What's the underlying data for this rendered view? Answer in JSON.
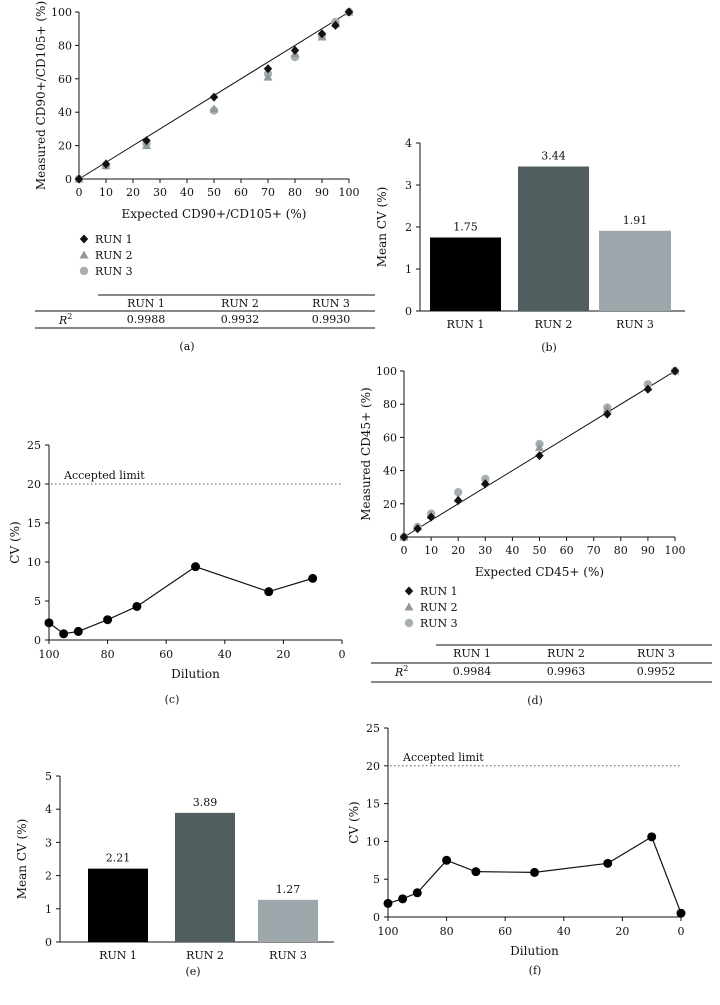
{
  "chart_data": [
    {
      "id": "a",
      "type": "scatter",
      "panel_label": "(a)",
      "xlabel": "Expected CD90+/CD105+ (%)",
      "ylabel": "Measured CD90+/CD105+ (%)",
      "xlim": [
        0,
        100
      ],
      "ylim": [
        0,
        100
      ],
      "xticks": [
        0,
        10,
        20,
        30,
        40,
        50,
        60,
        70,
        80,
        90,
        100
      ],
      "yticks": [
        0,
        20,
        40,
        60,
        80,
        100
      ],
      "fit_line": [
        [
          0,
          0
        ],
        [
          100,
          100
        ]
      ],
      "series": [
        {
          "name": "RUN 1",
          "marker": "diamond",
          "color": "#111111",
          "x": [
            0,
            10,
            25,
            50,
            70,
            80,
            90,
            95,
            100
          ],
          "y": [
            0,
            9,
            23,
            49,
            66,
            77,
            87,
            92,
            100
          ]
        },
        {
          "name": "RUN 2",
          "marker": "triangle",
          "color": "#8f9a9d",
          "x": [
            0,
            10,
            25,
            50,
            70,
            80,
            90,
            95,
            100
          ],
          "y": [
            0,
            8,
            20,
            42,
            61,
            75,
            85,
            93,
            100
          ]
        },
        {
          "name": "RUN 3",
          "marker": "circle",
          "color": "#a7afb3",
          "x": [
            0,
            10,
            25,
            50,
            70,
            80,
            90,
            95,
            100
          ],
          "y": [
            0,
            8,
            21,
            41,
            63,
            73,
            86,
            94,
            100
          ]
        }
      ],
      "legend": [
        "RUN 1",
        "RUN 2",
        "RUN 3"
      ],
      "r2_table": {
        "row_label": "R",
        "row_sup": "2",
        "headers": [
          "RUN 1",
          "RUN 2",
          "RUN 3"
        ],
        "values": [
          "0.9988",
          "0.9932",
          "0.9930"
        ]
      }
    },
    {
      "id": "b",
      "type": "bar",
      "panel_label": "(b)",
      "categories": [
        "RUN 1",
        "RUN 2",
        "RUN 3"
      ],
      "values": [
        1.75,
        3.44,
        1.91
      ],
      "data_labels": [
        "1.75",
        "3.44",
        "1.91"
      ],
      "colors": [
        "#000000",
        "#515e5f",
        "#9ea8ac"
      ],
      "ylabel": "Mean CV (%)",
      "ylim": [
        0,
        4
      ],
      "yticks": [
        0,
        1,
        2,
        3,
        4
      ]
    },
    {
      "id": "c",
      "type": "line",
      "panel_label": "(c)",
      "xlabel": "Dilution",
      "ylabel": "CV (%)",
      "xlim": [
        100,
        0
      ],
      "ylim": [
        0,
        25
      ],
      "xticks": [
        100,
        80,
        60,
        40,
        20,
        0
      ],
      "yticks": [
        0,
        5,
        10,
        15,
        20,
        25
      ],
      "x": [
        100,
        95,
        90,
        80,
        70,
        50,
        25,
        10
      ],
      "y": [
        2.2,
        0.8,
        1.1,
        2.6,
        4.3,
        9.4,
        6.2,
        7.9
      ],
      "limit": {
        "value": 20,
        "label": "Accepted limit"
      }
    },
    {
      "id": "d",
      "type": "scatter",
      "panel_label": "(d)",
      "xlabel": "Expected CD45+ (%)",
      "ylabel": "Measured CD45+ (%)",
      "xlim": [
        0,
        100
      ],
      "ylim": [
        0,
        100
      ],
      "xticks": [
        0,
        10,
        20,
        30,
        40,
        50,
        60,
        70,
        80,
        90,
        100
      ],
      "yticks": [
        0,
        20,
        40,
        60,
        80,
        100
      ],
      "fit_line": [
        [
          0,
          0
        ],
        [
          100,
          100
        ]
      ],
      "series": [
        {
          "name": "RUN 1",
          "marker": "diamond",
          "color": "#111111",
          "x": [
            0,
            5,
            10,
            20,
            30,
            50,
            75,
            90,
            100
          ],
          "y": [
            0,
            5,
            12,
            22,
            32,
            49,
            74,
            89,
            100
          ]
        },
        {
          "name": "RUN 2",
          "marker": "triangle",
          "color": "#8f9a9d",
          "x": [
            0,
            5,
            10,
            20,
            30,
            50,
            75,
            90,
            100
          ],
          "y": [
            0,
            6,
            13,
            23,
            33,
            54,
            77,
            90,
            100
          ]
        },
        {
          "name": "RUN 3",
          "marker": "circle",
          "color": "#a7afb3",
          "x": [
            0,
            5,
            10,
            20,
            30,
            50,
            75,
            90,
            100
          ],
          "y": [
            0,
            6,
            14,
            27,
            35,
            56,
            78,
            92,
            100
          ]
        }
      ],
      "legend": [
        "RUN 1",
        "RUN 2",
        "RUN 3"
      ],
      "r2_table": {
        "row_label": "R",
        "row_sup": "2",
        "headers": [
          "RUN 1",
          "RUN 2",
          "RUN 3"
        ],
        "values": [
          "0.9984",
          "0.9963",
          "0.9952"
        ]
      }
    },
    {
      "id": "e",
      "type": "bar",
      "panel_label": "(e)",
      "categories": [
        "RUN 1",
        "RUN 2",
        "RUN 3"
      ],
      "values": [
        2.21,
        3.89,
        1.27
      ],
      "data_labels": [
        "2.21",
        "3.89",
        "1.27"
      ],
      "colors": [
        "#000000",
        "#515e5f",
        "#9ea8ac"
      ],
      "ylabel": "Mean CV (%)",
      "ylim": [
        0,
        5
      ],
      "yticks": [
        0,
        1,
        2,
        3,
        4,
        5
      ]
    },
    {
      "id": "f",
      "type": "line",
      "panel_label": "(f)",
      "xlabel": "Dilution",
      "ylabel": "CV (%)",
      "xlim": [
        100,
        0
      ],
      "ylim": [
        0,
        25
      ],
      "xticks": [
        100,
        80,
        60,
        40,
        20,
        0
      ],
      "yticks": [
        0,
        5,
        10,
        15,
        20,
        25
      ],
      "x": [
        100,
        95,
        90,
        80,
        70,
        50,
        25,
        10,
        0
      ],
      "y": [
        1.8,
        2.4,
        3.2,
        7.5,
        6.0,
        5.9,
        7.1,
        10.6,
        0.5
      ],
      "limit": {
        "value": 20,
        "label": "Accepted limit"
      }
    }
  ]
}
